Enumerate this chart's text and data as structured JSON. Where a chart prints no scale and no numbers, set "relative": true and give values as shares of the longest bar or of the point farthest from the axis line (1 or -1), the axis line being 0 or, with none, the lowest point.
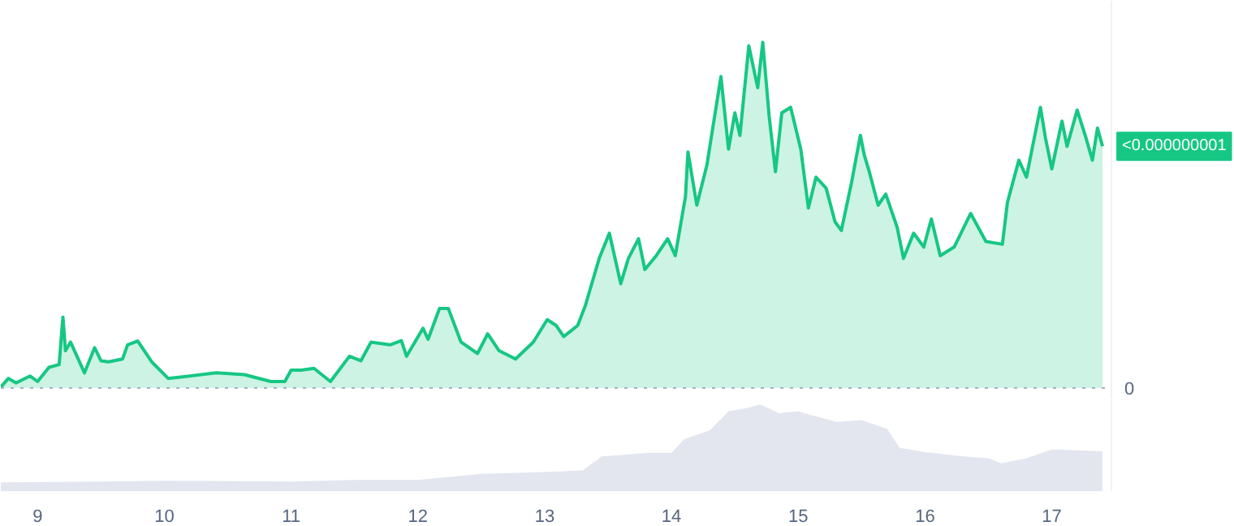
{
  "chart_data": [
    {
      "type": "area",
      "relative": true,
      "color": "#16c784",
      "xlim": [
        8.71,
        17.47
      ],
      "tick_labels": false,
      "grid": false,
      "x": [
        8.71,
        8.77,
        8.83,
        8.94,
        9.0,
        9.09,
        9.17,
        9.2,
        9.22,
        9.26,
        9.37,
        9.45,
        9.5,
        9.56,
        9.67,
        9.71,
        9.79,
        9.9,
        10.03,
        10.2,
        10.41,
        10.63,
        10.84,
        10.95,
        11.0,
        11.08,
        11.18,
        11.31,
        11.46,
        11.55,
        11.63,
        11.78,
        11.87,
        11.91,
        12.04,
        12.08,
        12.17,
        12.24,
        12.34,
        12.47,
        12.55,
        12.64,
        12.77,
        12.91,
        13.02,
        13.09,
        13.15,
        13.26,
        13.32,
        13.43,
        13.51,
        13.6,
        13.66,
        13.74,
        13.79,
        13.88,
        13.97,
        14.03,
        14.11,
        14.13,
        14.2,
        14.28,
        14.32,
        14.39,
        14.45,
        14.5,
        14.54,
        14.61,
        14.68,
        14.72,
        14.77,
        14.82,
        14.87,
        14.94,
        15.02,
        15.08,
        15.14,
        15.22,
        15.29,
        15.34,
        15.42,
        15.49,
        15.52,
        15.56,
        15.63,
        15.69,
        15.78,
        15.83,
        15.91,
        15.99,
        16.05,
        16.12,
        16.23,
        16.36,
        16.48,
        16.61,
        16.65,
        16.74,
        16.8,
        16.91,
        16.95,
        17.0,
        17.08,
        17.12,
        17.2,
        17.27,
        17.32,
        17.36,
        17.4
      ],
      "values": [
        0.003,
        0.028,
        0.015,
        0.035,
        0.019,
        0.06,
        0.068,
        0.205,
        0.108,
        0.133,
        0.044,
        0.117,
        0.079,
        0.076,
        0.084,
        0.125,
        0.136,
        0.076,
        0.028,
        0.035,
        0.044,
        0.039,
        0.019,
        0.019,
        0.052,
        0.052,
        0.057,
        0.019,
        0.092,
        0.079,
        0.133,
        0.125,
        0.137,
        0.092,
        0.173,
        0.141,
        0.23,
        0.23,
        0.133,
        0.1,
        0.157,
        0.108,
        0.084,
        0.133,
        0.198,
        0.181,
        0.149,
        0.181,
        0.238,
        0.375,
        0.448,
        0.302,
        0.375,
        0.432,
        0.343,
        0.383,
        0.432,
        0.383,
        0.553,
        0.683,
        0.529,
        0.646,
        0.739,
        0.901,
        0.691,
        0.796,
        0.731,
        0.99,
        0.869,
        1.0,
        0.788,
        0.626,
        0.796,
        0.812,
        0.691,
        0.521,
        0.61,
        0.578,
        0.481,
        0.456,
        0.594,
        0.731,
        0.675,
        0.626,
        0.529,
        0.561,
        0.465,
        0.375,
        0.448,
        0.408,
        0.489,
        0.383,
        0.408,
        0.505,
        0.424,
        0.416,
        0.537,
        0.659,
        0.61,
        0.812,
        0.723,
        0.634,
        0.772,
        0.699,
        0.804,
        0.723,
        0.659,
        0.752,
        0.699
      ],
      "ref_lines": [
        {
          "axis": "y",
          "value": 0,
          "label": "0",
          "color": "#a6b0c3",
          "line_style": "dotted"
        }
      ],
      "annotations": [
        {
          "text": "<0.000000001",
          "x": 17.4,
          "y": 0.699
        }
      ]
    },
    {
      "type": "area",
      "relative": true,
      "color": "#e3e6ef",
      "xlim": [
        8.71,
        17.47
      ],
      "xticks": [
        9,
        10,
        11,
        12,
        13,
        14,
        15,
        16,
        17
      ],
      "tick_labels": "x",
      "grid": false,
      "x": [
        8.71,
        9.5,
        10,
        11,
        11.5,
        12,
        12.5,
        13,
        13.3,
        13.45,
        13.8,
        14.0,
        14.1,
        14.3,
        14.45,
        14.6,
        14.7,
        14.85,
        15.0,
        15.1,
        15.3,
        15.5,
        15.7,
        15.8,
        16.0,
        16.3,
        16.5,
        16.6,
        16.8,
        17.0,
        17.2,
        17.4
      ],
      "values": [
        0.1,
        0.11,
        0.12,
        0.11,
        0.13,
        0.13,
        0.2,
        0.22,
        0.24,
        0.4,
        0.44,
        0.44,
        0.6,
        0.7,
        0.92,
        0.96,
        1.0,
        0.9,
        0.92,
        0.88,
        0.8,
        0.82,
        0.72,
        0.5,
        0.45,
        0.4,
        0.38,
        0.32,
        0.38,
        0.48,
        0.47,
        0.46
      ]
    }
  ]
}
